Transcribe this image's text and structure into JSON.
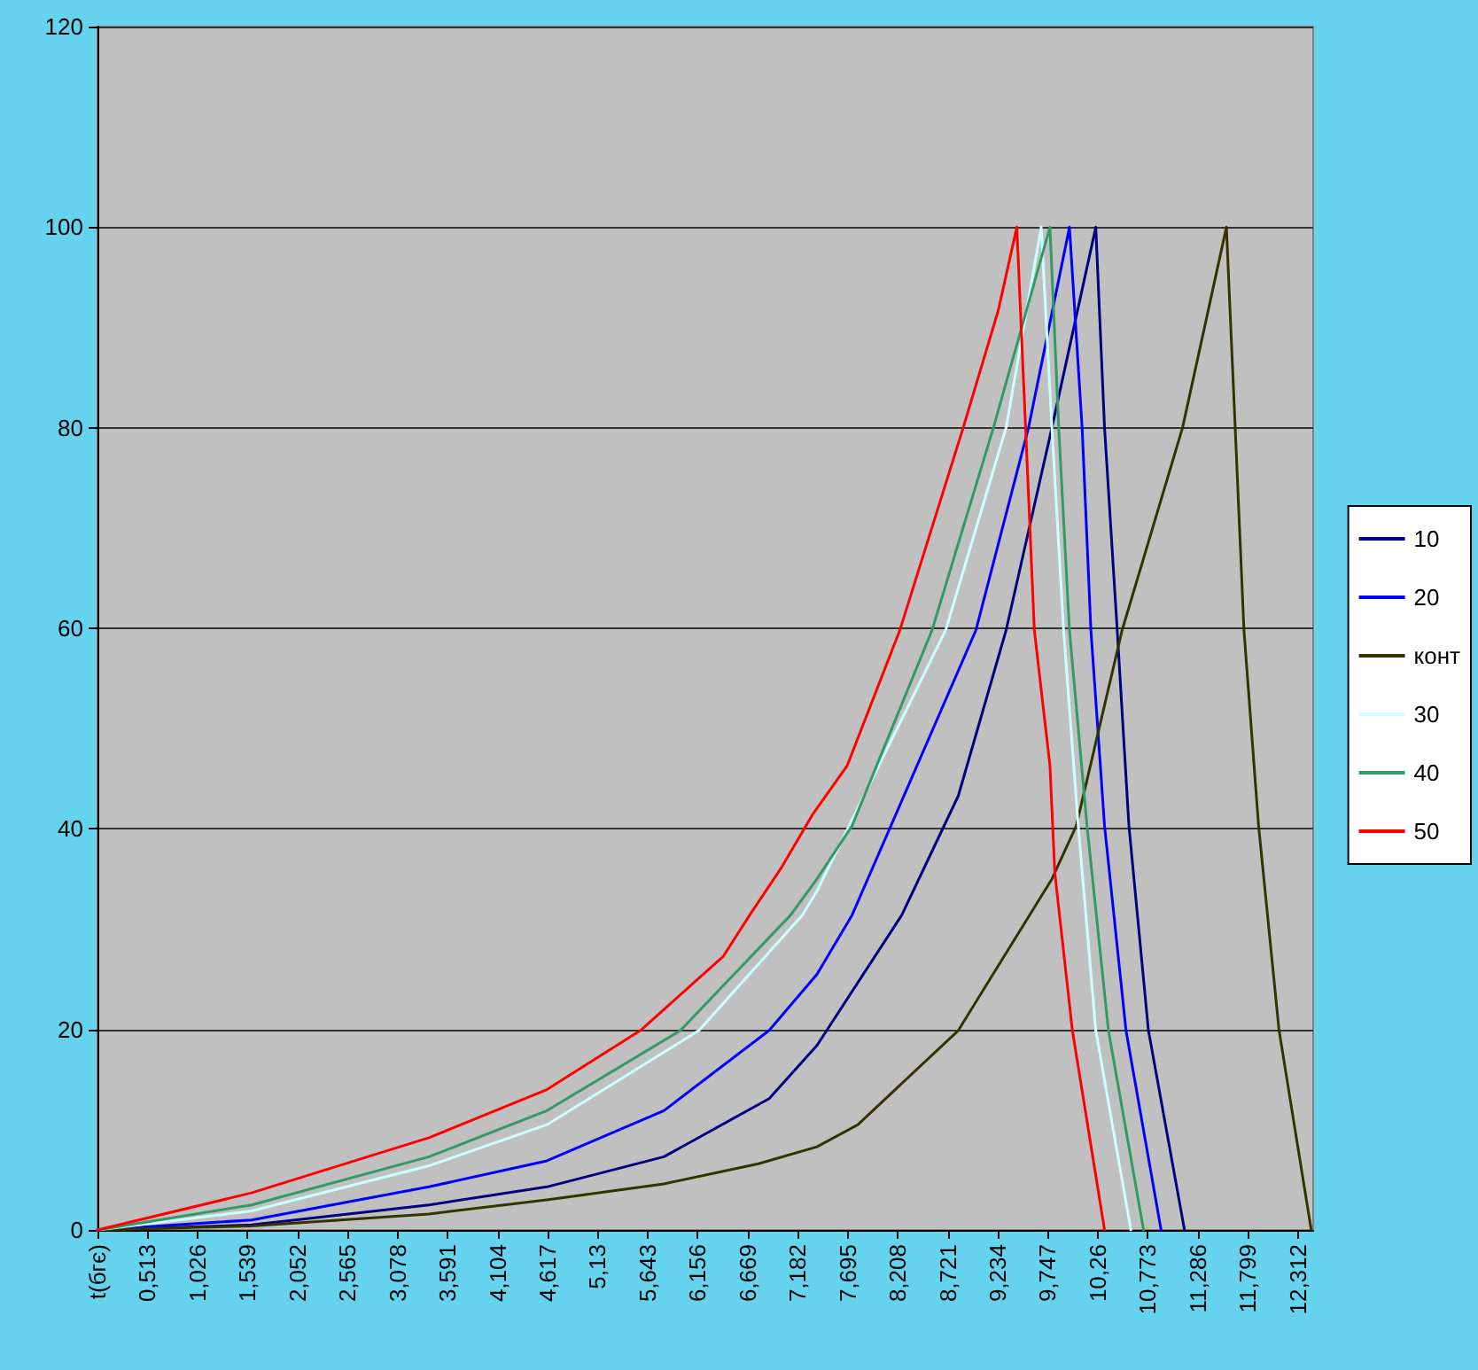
{
  "chart_data": {
    "type": "line",
    "marker": "none",
    "line_style": "solid",
    "grid": "y",
    "legend": "right",
    "xlim": [
      0,
      12.47
    ],
    "ylim": [
      0,
      120
    ],
    "yticks": [
      0,
      20,
      40,
      60,
      80,
      100,
      120
    ],
    "xticks": [
      {
        "value": 0,
        "label": "t(бгє)"
      },
      {
        "value": 0.513,
        "label": "0,513"
      },
      {
        "value": 1.026,
        "label": "1,026"
      },
      {
        "value": 1.539,
        "label": "1,539"
      },
      {
        "value": 2.052,
        "label": "2,052"
      },
      {
        "value": 2.565,
        "label": "2,565"
      },
      {
        "value": 3.078,
        "label": "3,078"
      },
      {
        "value": 3.591,
        "label": "3,591"
      },
      {
        "value": 4.104,
        "label": "4,104"
      },
      {
        "value": 4.617,
        "label": "4,617"
      },
      {
        "value": 5.13,
        "label": "5,13"
      },
      {
        "value": 5.643,
        "label": "5,643"
      },
      {
        "value": 6.156,
        "label": "6,156"
      },
      {
        "value": 6.669,
        "label": "6,669"
      },
      {
        "value": 7.182,
        "label": "7,182"
      },
      {
        "value": 7.695,
        "label": "7,695"
      },
      {
        "value": 8.208,
        "label": "8,208"
      },
      {
        "value": 8.721,
        "label": "8,721"
      },
      {
        "value": 9.234,
        "label": "9,234"
      },
      {
        "value": 9.747,
        "label": "9,747"
      },
      {
        "value": 10.26,
        "label": "10,26"
      },
      {
        "value": 10.773,
        "label": "10,773"
      },
      {
        "value": 11.286,
        "label": "11,286"
      },
      {
        "value": 11.799,
        "label": "11,799"
      },
      {
        "value": 12.312,
        "label": "12,312"
      }
    ],
    "series": [
      {
        "name": "10",
        "color": "#000080",
        "x": [
          0,
          1.58,
          3.4,
          4.61,
          5.81,
          6.89,
          7.38,
          8.25,
          8.83,
          9.32,
          9.79,
          10.24,
          10.33,
          10.46,
          10.58,
          10.78,
          11.15
        ],
        "values": [
          0,
          0.5,
          2.5,
          4.3,
          7.3,
          13.1,
          18.4,
          31.4,
          43.3,
          59.8,
          80,
          100,
          80,
          59.8,
          40.3,
          19.9,
          0
        ]
      },
      {
        "name": "20",
        "color": "#0000ff",
        "x": [
          0,
          1.58,
          3.4,
          4.61,
          5.81,
          6.89,
          7.38,
          7.74,
          9.01,
          9.55,
          9.97,
          10.1,
          10.19,
          10.33,
          10.55,
          10.91
        ],
        "values": [
          0,
          1,
          4.3,
          6.9,
          11.9,
          19.9,
          25.5,
          31.4,
          59.8,
          80,
          100,
          80,
          59.8,
          40.3,
          19.9,
          0
        ]
      },
      {
        "name": "конт",
        "color": "#333300",
        "x": [
          0,
          1.58,
          3.4,
          4.61,
          5.81,
          6.78,
          7.38,
          7.8,
          8.83,
          9.79,
          10.04,
          10.51,
          11.13,
          11.58,
          11.67,
          11.76,
          11.91,
          12.12,
          12.45
        ],
        "values": [
          0,
          0.4,
          1.6,
          3,
          4.6,
          6.6,
          8.3,
          10.5,
          19.9,
          35,
          40.3,
          59.8,
          80,
          100,
          80,
          59.8,
          40.3,
          19.9,
          0
        ]
      },
      {
        "name": "30",
        "color": "#ccffff",
        "x": [
          0,
          1.58,
          3.4,
          4.61,
          6.17,
          7.23,
          7.38,
          8.7,
          9.32,
          9.68,
          9.79,
          9.91,
          10.06,
          10.24,
          10.6
        ],
        "values": [
          0,
          1.9,
          6.4,
          10.5,
          19.9,
          31.4,
          33.8,
          59.8,
          80,
          100,
          80,
          59.8,
          40.3,
          19.9,
          0
        ]
      },
      {
        "name": "40",
        "color": "#339966",
        "x": [
          0,
          1.58,
          3.4,
          4.61,
          5.98,
          7.11,
          7.38,
          7.74,
          8.56,
          9.19,
          9.77,
          9.86,
          9.97,
          10.15,
          10.37,
          10.73
        ],
        "values": [
          0,
          2.5,
          7.3,
          11.9,
          19.9,
          31.4,
          35,
          40.3,
          59.8,
          80,
          100,
          80,
          59.8,
          40.3,
          19.9,
          0
        ]
      },
      {
        "name": "50",
        "color": "#ff0000",
        "x": [
          0,
          1.58,
          3.4,
          4.61,
          5.57,
          6.42,
          6.69,
          7.02,
          7.34,
          7.69,
          8.23,
          8.88,
          9.24,
          9.43,
          9.52,
          9.61,
          9.77,
          9.82,
          10.0,
          10.33
        ],
        "values": [
          0,
          3.7,
          9.2,
          14,
          19.9,
          27.3,
          31.4,
          36.2,
          41.5,
          46.3,
          59.8,
          80,
          91.7,
          100,
          80,
          59.8,
          46.3,
          35.6,
          19.9,
          0
        ]
      }
    ]
  }
}
